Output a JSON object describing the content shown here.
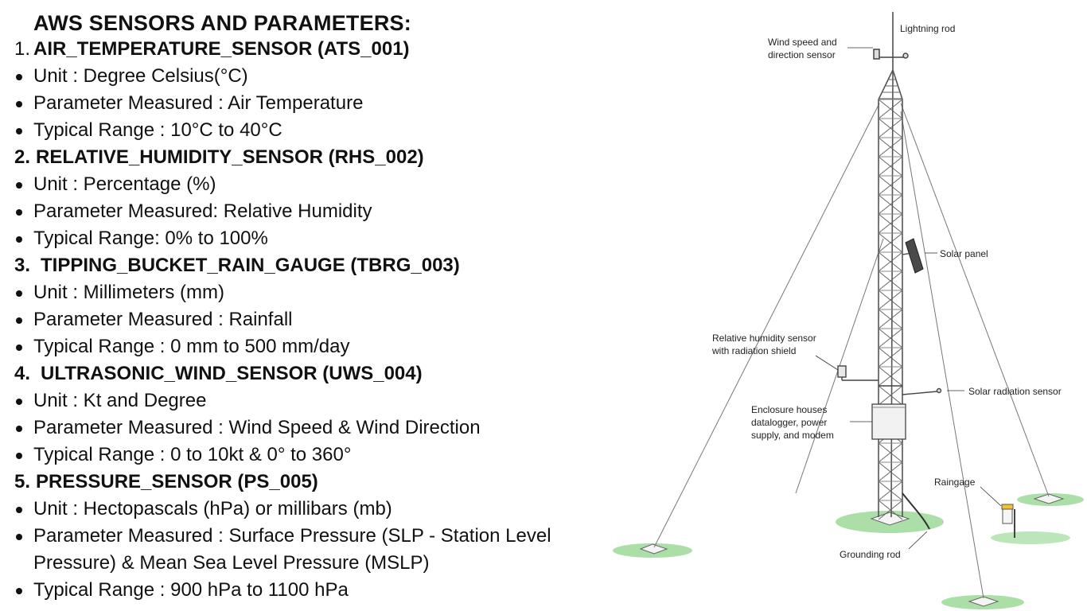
{
  "page": {
    "title": "AWS SENSORS AND PARAMETERS:"
  },
  "sensors": [
    {
      "number": "1.",
      "name": "AIR_TEMPERATURE_SENSOR (ATS_001)",
      "unit": "Unit : Degree Celsius(°C)",
      "parameter": "Parameter Measured : Air Temperature",
      "range": "Typical Range :  10°C to 40°C"
    },
    {
      "number": "2.",
      "name": "RELATIVE_HUMIDITY_SENSOR (RHS_002)",
      "unit": "Unit : Percentage (%)",
      "parameter": "Parameter Measured: Relative Humidity",
      "range": "Typical Range: 0% to 100%"
    },
    {
      "number": "3.",
      "name": "TIPPING_BUCKET_RAIN_GAUGE (TBRG_003)",
      "unit": "Unit : Millimeters (mm)",
      "parameter": "Parameter Measured : Rainfall",
      "range": "Typical Range : 0 mm to 500 mm/day"
    },
    {
      "number": "4.",
      "name": "ULTRASONIC_WIND_SENSOR (UWS_004)",
      "unit": "Unit : Kt and Degree",
      "parameter": "Parameter Measured : Wind Speed & Wind Direction",
      "range": "Typical Range : 0 to 10kt & 0° to 360°"
    },
    {
      "number": "5.",
      "name": "PRESSURE_SENSOR (PS_005)",
      "unit": "Unit : Hectopascals (hPa) or millibars (mb)",
      "parameter_line1": "Parameter Measured : Surface Pressure (SLP - Station Level",
      "parameter_line2": "Pressure) & Mean Sea Level Pressure (MSLP)",
      "range": "Typical Range : 900 hPa to 1100 hPa"
    }
  ],
  "diagram": {
    "labels": {
      "lightning_rod": "Lightning rod",
      "wind_sensor_1": "Wind speed and",
      "wind_sensor_2": "direction sensor",
      "solar_panel": "Solar panel",
      "rh_sensor_1": "Relative humidity sensor",
      "rh_sensor_2": "with radiation shield",
      "solar_radiation": "Solar radiation sensor",
      "enclosure_1": "Enclosure houses",
      "enclosure_2": "datalogger, power",
      "enclosure_3": "supply, and modem",
      "raingage": "Raingage",
      "grounding_rod": "Grounding rod"
    },
    "colors": {
      "grass": "#8fd48a",
      "raingage": "#f2c230",
      "line": "#555555"
    }
  }
}
